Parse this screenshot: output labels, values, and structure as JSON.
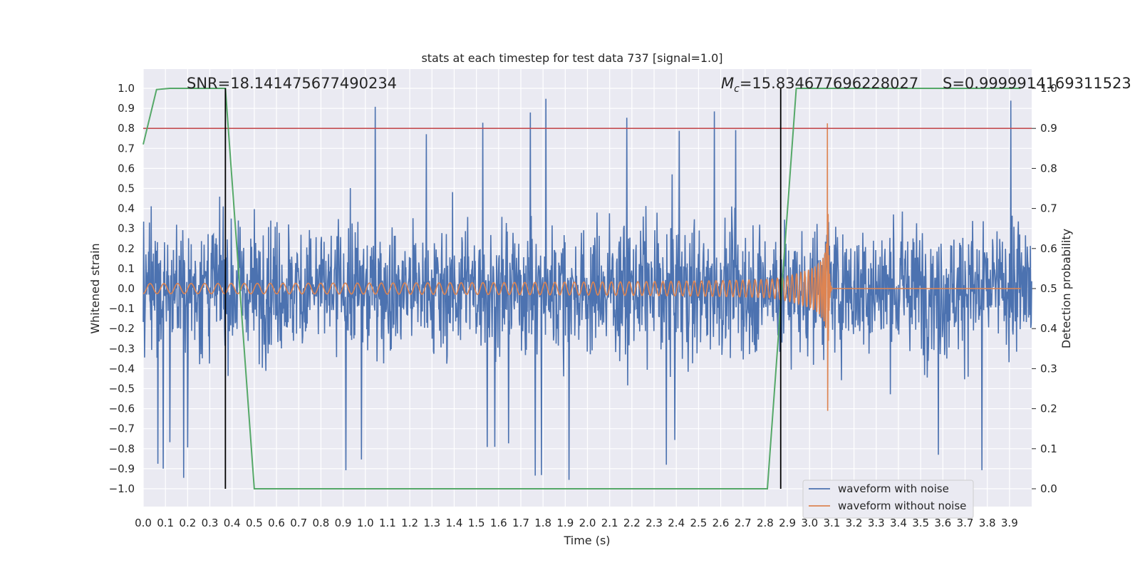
{
  "chart_data": {
    "type": "line",
    "title": "stats at each timestep for test data 737 [signal=1.0]",
    "xlabel": "Time (s)",
    "ylabel": "Whitened strain",
    "y2label": "Detection probability",
    "xlim": [
      0.0,
      4.0
    ],
    "ylim": [
      -1.0,
      1.0
    ],
    "y2lim": [
      0.0,
      1.0
    ],
    "grid": true,
    "xticks": [
      0.0,
      0.1,
      0.2,
      0.3,
      0.4,
      0.5,
      0.6,
      0.7,
      0.8,
      0.9,
      1.0,
      1.1,
      1.2,
      1.3,
      1.4,
      1.5,
      1.6,
      1.7,
      1.8,
      1.9,
      2.0,
      2.1,
      2.2,
      2.3,
      2.4,
      2.5,
      2.6,
      2.7,
      2.8,
      2.9,
      3.0,
      3.1,
      3.2,
      3.3,
      3.4,
      3.5,
      3.6,
      3.7,
      3.8,
      3.9
    ],
    "xtick_labels": [
      "0.0",
      "0.1",
      "0.2",
      "0.3",
      "0.4",
      "0.5",
      "0.6",
      "0.7",
      "0.8",
      "0.9",
      "1.0",
      "1.1",
      "1.2",
      "1.3",
      "1.4",
      "1.5",
      "1.6",
      "1.7",
      "1.8",
      "1.9",
      "2.0",
      "2.1",
      "2.2",
      "2.3",
      "2.4",
      "2.5",
      "2.6",
      "2.7",
      "2.8",
      "2.9",
      "3.0",
      "3.1",
      "3.2",
      "3.3",
      "3.4",
      "3.5",
      "3.6",
      "3.7",
      "3.8",
      "3.9"
    ],
    "yticks": [
      1.0,
      0.9,
      0.8,
      0.7,
      0.6,
      0.5,
      0.4,
      0.3,
      0.2,
      0.1,
      0.0,
      -0.1,
      -0.2,
      -0.3,
      -0.4,
      -0.5,
      -0.6,
      -0.7,
      -0.8,
      -0.9,
      -1.0
    ],
    "ytick_labels": [
      "1.0",
      "0.9",
      "0.8",
      "0.7",
      "0.6",
      "0.5",
      "0.4",
      "0.3",
      "0.2",
      "0.1",
      "0.0",
      "−0.1",
      "−0.2",
      "−0.3",
      "−0.4",
      "−0.5",
      "−0.6",
      "−0.7",
      "−0.8",
      "−0.9",
      "−1.0"
    ],
    "y2ticks": [
      1.0,
      0.9,
      0.8,
      0.7,
      0.6,
      0.5,
      0.4,
      0.3,
      0.2,
      0.1,
      0.0
    ],
    "y2tick_labels": [
      "1.0",
      "0.9",
      "0.8",
      "0.7",
      "0.6",
      "0.5",
      "0.4",
      "0.3",
      "0.2",
      "0.1",
      "0.0"
    ],
    "series": [
      {
        "name": "waveform with noise",
        "color": "#4c72b0",
        "axis": "left",
        "description": "dense noisy strain, roughly uniform amplitude ~0.4 with spikes to ~0.97 / -0.95",
        "noise_amplitude": 0.33,
        "t_start": 0.0,
        "t_end": 4.0,
        "samples": 2000
      },
      {
        "name": "waveform without noise",
        "color": "#dd8452",
        "axis": "left",
        "description": "inspiral chirp growing from ~0.025 amplitude to ~0.93 peak, merging near t=3.08 s, then flat at 0",
        "merger_time": 3.08,
        "start_amplitude": 0.025,
        "peak_amplitude": 0.93,
        "t_start": 0.0
      },
      {
        "name": "detection probability",
        "color": "#55a868",
        "axis": "right",
        "x": [
          0.0,
          0.06,
          0.12,
          0.37,
          0.5,
          2.81,
          2.94,
          3.95
        ],
        "y": [
          0.86,
          0.997,
          1.0,
          1.0,
          0.0,
          0.0,
          1.0,
          1.0
        ]
      }
    ],
    "threshold": {
      "y2": 0.9,
      "color": "#c44e52"
    },
    "vlines": [
      {
        "x": 0.37,
        "color": "#000000",
        "y2_from": 0.0,
        "y2_to": 1.0
      },
      {
        "x": 2.87,
        "color": "#000000",
        "y2_from": 0.0,
        "y2_to": 1.0
      }
    ],
    "annotations": {
      "snr": "SNR=18.141475677490234",
      "mc_symbol": "M",
      "mc_sub": "c",
      "mc_value": "=15.834677696228027",
      "s": "S=0.9999914169311523"
    },
    "legend": {
      "position": "lower right",
      "entries": [
        "waveform with noise",
        "waveform without noise"
      ]
    }
  }
}
